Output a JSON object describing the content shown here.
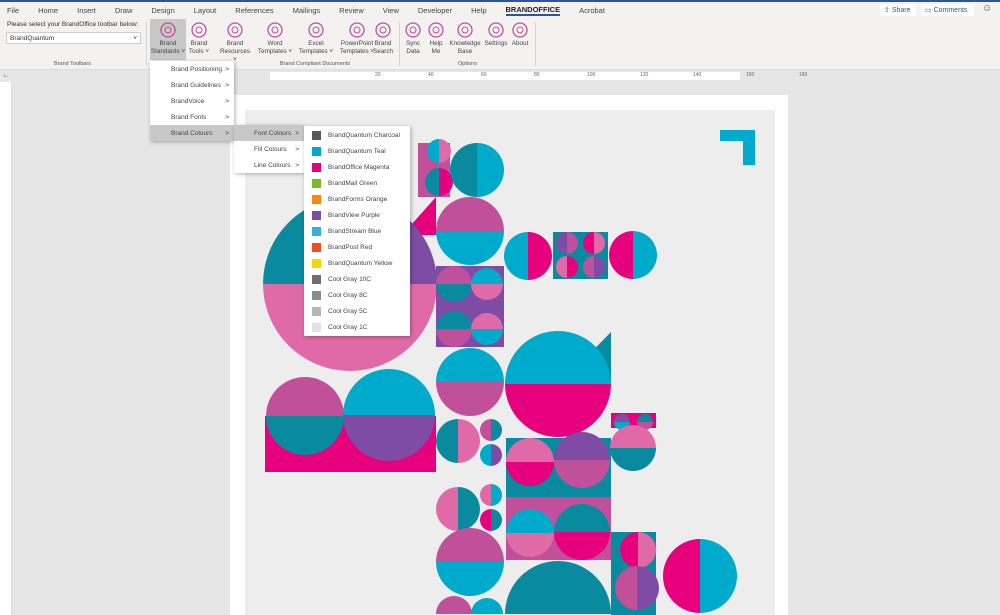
{
  "tabs": [
    "File",
    "Home",
    "Insert",
    "Draw",
    "Design",
    "Layout",
    "References",
    "Mailings",
    "Review",
    "View",
    "Developer",
    "Help",
    "BRANDOFFICE",
    "Acrobat"
  ],
  "active_tab": "BRANDOFFICE",
  "share": "Share",
  "comments": "Comments",
  "ribbon": {
    "toolbar_label": "Please select your BrandOffice toolbar below:",
    "toolbar_value": "BrandQuantum",
    "groups": [
      "Brand Toolbars",
      "Brand Compliant Documents",
      "Options"
    ],
    "buttons": [
      {
        "l1": "Brand",
        "l2": "Standards ˅",
        "icon": "brand-standards-icon"
      },
      {
        "l1": "Brand",
        "l2": "Tools ˅",
        "icon": "brand-tools-icon"
      },
      {
        "l1": "Brand",
        "l2": "Resources ˅",
        "icon": "brand-resources-icon"
      },
      {
        "l1": "Word",
        "l2": "Templates ˅",
        "icon": "word-template-icon"
      },
      {
        "l1": "Excel",
        "l2": "Templates ˅",
        "icon": "excel-template-icon"
      },
      {
        "l1": "PowerPoint",
        "l2": "Templates ˅",
        "icon": "powerpoint-template-icon"
      },
      {
        "l1": "Brand",
        "l2": "Search",
        "icon": "search-icon"
      },
      {
        "l1": "Sync",
        "l2": "Data",
        "icon": "sync-icon"
      },
      {
        "l1": "Help",
        "l2": "Me",
        "icon": "help-icon"
      },
      {
        "l1": "Knowledge",
        "l2": "Base",
        "icon": "lightbulb-icon"
      },
      {
        "l1": "Settings",
        "l2": "",
        "icon": "gear-icon"
      },
      {
        "l1": "About",
        "l2": "",
        "icon": "info-icon"
      }
    ]
  },
  "ruler_ticks": [
    "20",
    "40",
    "60",
    "80",
    "100",
    "120",
    "140",
    "150",
    "160"
  ],
  "menu1": [
    "Brand Positioning",
    "Brand Guidelines",
    "BrandVoice",
    "Brand Fonts",
    "Brand Colours"
  ],
  "menu2": [
    "Font Colours",
    "Fill Colours",
    "Line Colours"
  ],
  "colours": [
    {
      "name": "BrandQuantum Charcoal",
      "hex": "#58595b"
    },
    {
      "name": "BrandQuantum Teal",
      "hex": "#00a9c8"
    },
    {
      "name": "BrandOffice Magenta",
      "hex": "#e6007e"
    },
    {
      "name": "BrandMail Green",
      "hex": "#7ab929"
    },
    {
      "name": "BrandForms Orange",
      "hex": "#f7870f"
    },
    {
      "name": "BrandView Purple",
      "hex": "#7e4ca4"
    },
    {
      "name": "BrandStream Blue",
      "hex": "#3ab0d6"
    },
    {
      "name": "BrandPost Red",
      "hex": "#f04e23"
    },
    {
      "name": "BrandQuantum Yellow",
      "hex": "#f0d800"
    },
    {
      "name": "Cool Gray 10C",
      "hex": "#6d6e70"
    },
    {
      "name": "Cool Gray 8C",
      "hex": "#8a8b8d"
    },
    {
      "name": "Cool Gray 5C",
      "hex": "#b5b6b8"
    },
    {
      "name": "Cool Gray 1C",
      "hex": "#e3e3e3"
    }
  ],
  "art_palette": {
    "teal": "#0a8a9e",
    "cyan": "#00aacb",
    "magenta": "#e6007e",
    "pink": "#e06aa8",
    "mauve": "#c0509a",
    "purple": "#7e4ca4"
  }
}
